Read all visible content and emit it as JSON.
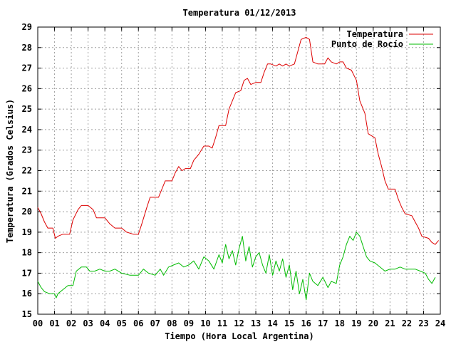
{
  "chart_data": {
    "type": "line",
    "title": "Temperatura 01/12/2013",
    "xlabel": "Tiempo (Hora Local Argentina)",
    "ylabel": "Temperatura (Grados Celsius)",
    "xlim": [
      0,
      24
    ],
    "ylim": [
      15,
      29
    ],
    "x_ticks": [
      "00",
      "01",
      "02",
      "03",
      "04",
      "05",
      "06",
      "07",
      "08",
      "09",
      "10",
      "11",
      "12",
      "13",
      "14",
      "15",
      "16",
      "17",
      "18",
      "19",
      "20",
      "21",
      "22",
      "23",
      "24"
    ],
    "y_ticks": [
      "15",
      "16",
      "17",
      "18",
      "19",
      "20",
      "21",
      "22",
      "23",
      "24",
      "25",
      "26",
      "27",
      "28",
      "29"
    ],
    "grid": true,
    "legend_position": "top-right",
    "series": [
      {
        "name": "Temperatura",
        "color": "#dd0000",
        "points": [
          [
            0,
            20.2
          ],
          [
            0.2,
            19.9
          ],
          [
            0.4,
            19.5
          ],
          [
            0.6,
            19.2
          ],
          [
            0.9,
            19.2
          ],
          [
            1.05,
            18.7
          ],
          [
            1.2,
            18.8
          ],
          [
            1.5,
            18.9
          ],
          [
            1.9,
            18.9
          ],
          [
            2.1,
            19.6
          ],
          [
            2.4,
            20.1
          ],
          [
            2.6,
            20.3
          ],
          [
            3.0,
            20.3
          ],
          [
            3.3,
            20.1
          ],
          [
            3.5,
            19.7
          ],
          [
            4.0,
            19.7
          ],
          [
            4.3,
            19.4
          ],
          [
            4.6,
            19.2
          ],
          [
            5.0,
            19.2
          ],
          [
            5.3,
            19.0
          ],
          [
            5.7,
            18.9
          ],
          [
            6.0,
            18.9
          ],
          [
            6.2,
            19.4
          ],
          [
            6.5,
            20.2
          ],
          [
            6.7,
            20.7
          ],
          [
            7.2,
            20.7
          ],
          [
            7.4,
            21.1
          ],
          [
            7.6,
            21.5
          ],
          [
            8.0,
            21.5
          ],
          [
            8.2,
            21.9
          ],
          [
            8.4,
            22.2
          ],
          [
            8.6,
            22.0
          ],
          [
            8.8,
            22.1
          ],
          [
            9.1,
            22.1
          ],
          [
            9.3,
            22.5
          ],
          [
            9.6,
            22.8
          ],
          [
            9.9,
            23.2
          ],
          [
            10.2,
            23.2
          ],
          [
            10.4,
            23.1
          ],
          [
            10.6,
            23.6
          ],
          [
            10.8,
            24.2
          ],
          [
            11.2,
            24.2
          ],
          [
            11.4,
            25.0
          ],
          [
            11.6,
            25.4
          ],
          [
            11.8,
            25.8
          ],
          [
            12.1,
            25.9
          ],
          [
            12.3,
            26.4
          ],
          [
            12.5,
            26.5
          ],
          [
            12.7,
            26.2
          ],
          [
            13.0,
            26.3
          ],
          [
            13.3,
            26.3
          ],
          [
            13.5,
            26.8
          ],
          [
            13.7,
            27.2
          ],
          [
            13.9,
            27.2
          ],
          [
            14.2,
            27.1
          ],
          [
            14.4,
            27.2
          ],
          [
            14.6,
            27.1
          ],
          [
            14.8,
            27.2
          ],
          [
            15.0,
            27.1
          ],
          [
            15.3,
            27.2
          ],
          [
            15.5,
            27.8
          ],
          [
            15.7,
            28.4
          ],
          [
            16.0,
            28.5
          ],
          [
            16.2,
            28.4
          ],
          [
            16.4,
            27.3
          ],
          [
            16.7,
            27.2
          ],
          [
            17.1,
            27.2
          ],
          [
            17.3,
            27.5
          ],
          [
            17.5,
            27.3
          ],
          [
            17.8,
            27.2
          ],
          [
            18.0,
            27.3
          ],
          [
            18.2,
            27.3
          ],
          [
            18.4,
            27.0
          ],
          [
            18.7,
            26.9
          ],
          [
            19.0,
            26.4
          ],
          [
            19.2,
            25.4
          ],
          [
            19.5,
            24.8
          ],
          [
            19.7,
            23.8
          ],
          [
            20.1,
            23.6
          ],
          [
            20.3,
            22.8
          ],
          [
            20.5,
            22.2
          ],
          [
            20.7,
            21.5
          ],
          [
            20.9,
            21.1
          ],
          [
            21.3,
            21.1
          ],
          [
            21.5,
            20.6
          ],
          [
            21.7,
            20.2
          ],
          [
            21.9,
            19.9
          ],
          [
            22.3,
            19.8
          ],
          [
            22.5,
            19.5
          ],
          [
            22.7,
            19.2
          ],
          [
            22.9,
            18.8
          ],
          [
            23.3,
            18.7
          ],
          [
            23.5,
            18.5
          ],
          [
            23.7,
            18.4
          ],
          [
            23.9,
            18.6
          ]
        ]
      },
      {
        "name": "Punto de Rocío",
        "color": "#00bb00",
        "points": [
          [
            0,
            16.6
          ],
          [
            0.2,
            16.3
          ],
          [
            0.4,
            16.1
          ],
          [
            0.7,
            16.0
          ],
          [
            1.0,
            16.0
          ],
          [
            1.1,
            15.8
          ],
          [
            1.2,
            16.0
          ],
          [
            1.5,
            16.2
          ],
          [
            1.8,
            16.4
          ],
          [
            2.1,
            16.4
          ],
          [
            2.3,
            17.1
          ],
          [
            2.6,
            17.3
          ],
          [
            2.9,
            17.3
          ],
          [
            3.1,
            17.1
          ],
          [
            3.4,
            17.1
          ],
          [
            3.7,
            17.2
          ],
          [
            4.0,
            17.1
          ],
          [
            4.3,
            17.1
          ],
          [
            4.6,
            17.2
          ],
          [
            5.0,
            17.0
          ],
          [
            5.5,
            16.9
          ],
          [
            6.0,
            16.9
          ],
          [
            6.3,
            17.2
          ],
          [
            6.6,
            17.0
          ],
          [
            7.0,
            16.9
          ],
          [
            7.3,
            17.2
          ],
          [
            7.5,
            16.9
          ],
          [
            7.8,
            17.3
          ],
          [
            8.1,
            17.4
          ],
          [
            8.4,
            17.5
          ],
          [
            8.7,
            17.3
          ],
          [
            9.0,
            17.4
          ],
          [
            9.3,
            17.6
          ],
          [
            9.6,
            17.2
          ],
          [
            9.9,
            17.8
          ],
          [
            10.2,
            17.6
          ],
          [
            10.5,
            17.2
          ],
          [
            10.8,
            17.9
          ],
          [
            11.0,
            17.5
          ],
          [
            11.2,
            18.4
          ],
          [
            11.4,
            17.7
          ],
          [
            11.6,
            18.1
          ],
          [
            11.8,
            17.4
          ],
          [
            12.0,
            18.2
          ],
          [
            12.2,
            18.8
          ],
          [
            12.4,
            17.6
          ],
          [
            12.6,
            18.3
          ],
          [
            12.8,
            17.3
          ],
          [
            13.0,
            17.8
          ],
          [
            13.2,
            18.0
          ],
          [
            13.4,
            17.4
          ],
          [
            13.6,
            17.0
          ],
          [
            13.8,
            17.9
          ],
          [
            14.0,
            16.9
          ],
          [
            14.2,
            17.6
          ],
          [
            14.4,
            17.1
          ],
          [
            14.6,
            17.7
          ],
          [
            14.8,
            16.8
          ],
          [
            15.0,
            17.4
          ],
          [
            15.2,
            16.2
          ],
          [
            15.4,
            17.1
          ],
          [
            15.6,
            16.0
          ],
          [
            15.8,
            16.7
          ],
          [
            16.0,
            15.7
          ],
          [
            16.2,
            17.0
          ],
          [
            16.4,
            16.6
          ],
          [
            16.7,
            16.4
          ],
          [
            17.0,
            16.8
          ],
          [
            17.3,
            16.3
          ],
          [
            17.5,
            16.6
          ],
          [
            17.8,
            16.5
          ],
          [
            18.0,
            17.4
          ],
          [
            18.2,
            17.8
          ],
          [
            18.4,
            18.4
          ],
          [
            18.6,
            18.8
          ],
          [
            18.8,
            18.6
          ],
          [
            19.0,
            19.0
          ],
          [
            19.2,
            18.8
          ],
          [
            19.4,
            18.3
          ],
          [
            19.6,
            17.8
          ],
          [
            19.8,
            17.6
          ],
          [
            20.1,
            17.5
          ],
          [
            20.4,
            17.3
          ],
          [
            20.7,
            17.1
          ],
          [
            21.0,
            17.2
          ],
          [
            21.3,
            17.2
          ],
          [
            21.6,
            17.3
          ],
          [
            21.9,
            17.2
          ],
          [
            22.2,
            17.2
          ],
          [
            22.5,
            17.2
          ],
          [
            22.8,
            17.1
          ],
          [
            23.1,
            17.0
          ],
          [
            23.3,
            16.7
          ],
          [
            23.5,
            16.5
          ],
          [
            23.7,
            16.8
          ]
        ]
      }
    ]
  }
}
